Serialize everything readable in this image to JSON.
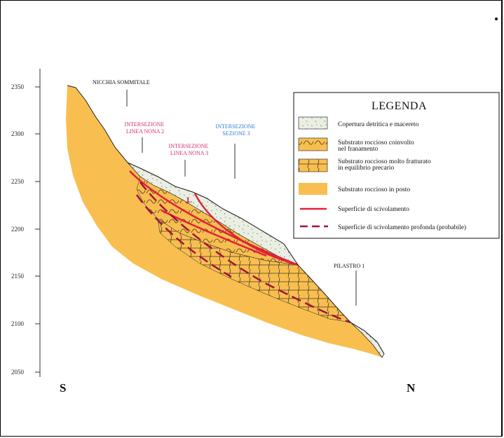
{
  "y_axis": {
    "ticks": [
      "2350",
      "2300",
      "2250",
      "2200",
      "2150",
      "2100",
      "2050"
    ]
  },
  "direction": {
    "left": "S",
    "right": "N"
  },
  "callouts": {
    "nicchia": "NICCHIA SOMMITALE",
    "linea2": [
      "INTERSEZIONE",
      "LINEA NONA 2"
    ],
    "linea3": [
      "INTERSEZIONE",
      "LINEA NONA 3"
    ],
    "sezione3": [
      "INTERSEZIONE",
      "SEZIONE 3"
    ],
    "pilastro": "PILASTRO 1",
    "slip_mark": "L"
  },
  "legend": {
    "title": "LEGENDA",
    "items": [
      {
        "lines": [
          "Copertura detritica e macereto"
        ],
        "symbol": "debris-cover"
      },
      {
        "lines": [
          "Substrato roccioso coinvolto",
          "nel franamento"
        ],
        "symbol": "involved-rock"
      },
      {
        "lines": [
          "Substrato roccioso molto fratturato",
          "in equilibrio precario"
        ],
        "symbol": "fractured-rock"
      },
      {
        "lines": [
          "Substrato roccioso in posto"
        ],
        "symbol": "in-place-rock"
      },
      {
        "lines": [
          "Superficie di scivolamento"
        ],
        "symbol": "slip-surface"
      },
      {
        "lines": [
          "Superficie di scivolamento profonda (probabile)"
        ],
        "symbol": "deep-slip-surface"
      }
    ]
  },
  "colors": {
    "rock": "#f8bf50",
    "debris": "#eceee6",
    "debris_dots": "#7dc06a",
    "slip_line": "#e0213a",
    "deep_slip": "#a3123a",
    "pink_text": "#d6296b",
    "blue_text": "#2f7bd6"
  }
}
